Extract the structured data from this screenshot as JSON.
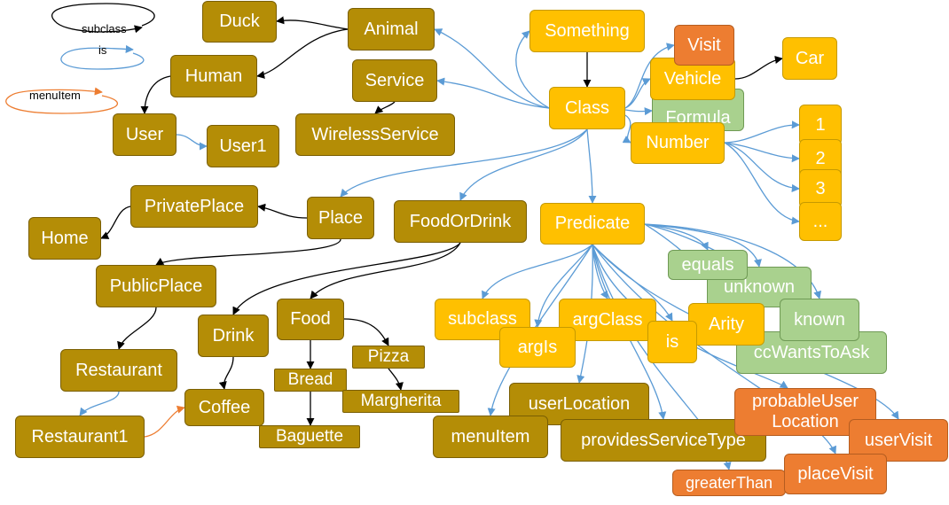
{
  "legend": {
    "subclass": "subclass",
    "is": "is",
    "menuItem": "menuItem"
  },
  "colors": {
    "class_node": "#b48d06",
    "predicate_node": "#ffc000",
    "value_node_green": "#a9d18e",
    "instance_node_orange": "#ed7d31",
    "subclass_edge": "#000000",
    "is_edge": "#5b9bd5",
    "menuItem_edge": "#ed7d31"
  },
  "nodes": {
    "duck": "Duck",
    "animal": "Animal",
    "human": "Human",
    "user": "User",
    "user1": "User1",
    "service": "Service",
    "wirelessService": "WirelessService",
    "something": "Something",
    "class": "Class",
    "visit": "Visit",
    "vehicle": "Vehicle",
    "car": "Car",
    "formula": "Formula",
    "number": "Number",
    "n1": "1",
    "n2": "2",
    "n3": "3",
    "nEllipsis": "...",
    "privatePlace": "PrivatePlace",
    "home": "Home",
    "place": "Place",
    "publicPlace": "PublicPlace",
    "restaurant": "Restaurant",
    "restaurant1": "Restaurant1",
    "foodOrDrink": "FoodOrDrink",
    "drink": "Drink",
    "coffee": "Coffee",
    "food": "Food",
    "pizza": "Pizza",
    "bread": "Bread",
    "margherita": "Margherita",
    "baguette": "Baguette",
    "predicate": "Predicate",
    "equals": "equals",
    "unknown": "unknown",
    "known": "known",
    "ccWantsToAsk": "ccWantsToAsk",
    "subclass": "subclass",
    "argIs": "argIs",
    "argClass": "argClass",
    "is": "is",
    "arity": "Arity",
    "userLocation": "userLocation",
    "menuItem": "menuItem",
    "providesServiceType": "providesServiceType",
    "probableUserLocation": "probableUser Location",
    "userVisit": "userVisit",
    "placeVisit": "placeVisit",
    "greaterThan": "greaterThan"
  }
}
